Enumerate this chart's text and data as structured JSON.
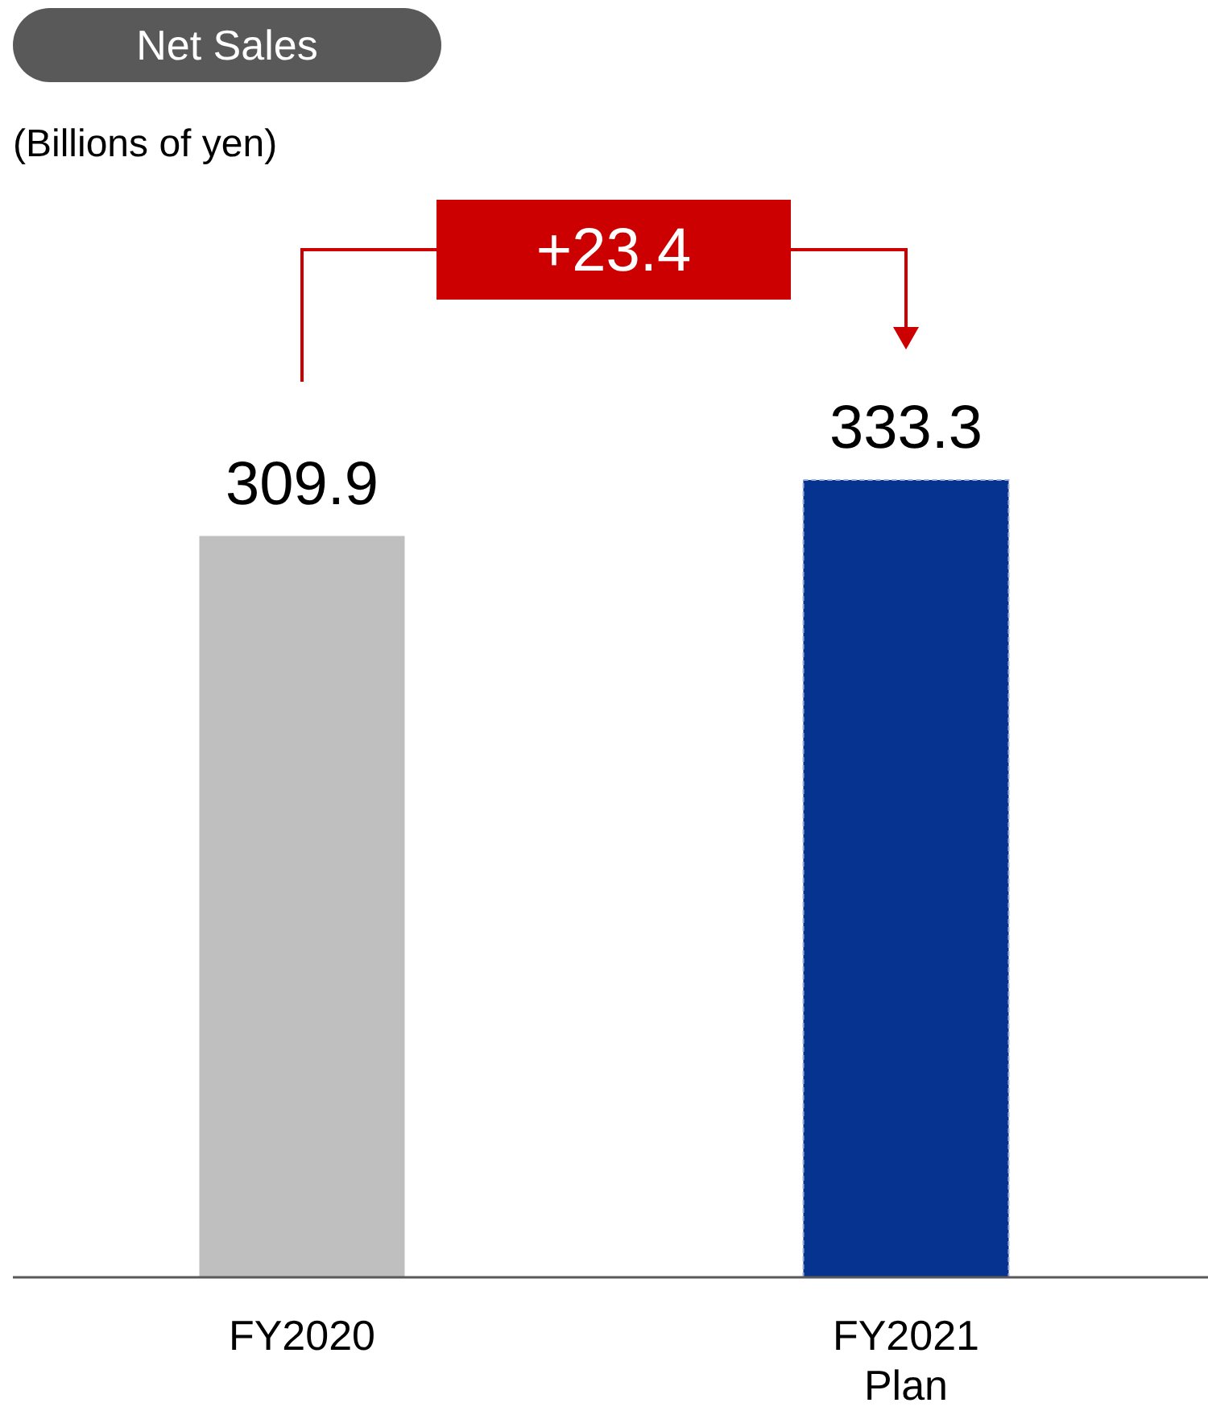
{
  "chart_data": {
    "type": "bar",
    "title": "Net Sales",
    "subtitle": "(Billions of yen)",
    "categories": [
      "FY2020",
      "FY2021 Plan"
    ],
    "values": [
      309.9,
      333.3
    ],
    "colors": [
      "#bfbfbf",
      "#06338f"
    ],
    "data_labels": true,
    "annotations": [
      "+23.4"
    ]
  }
}
